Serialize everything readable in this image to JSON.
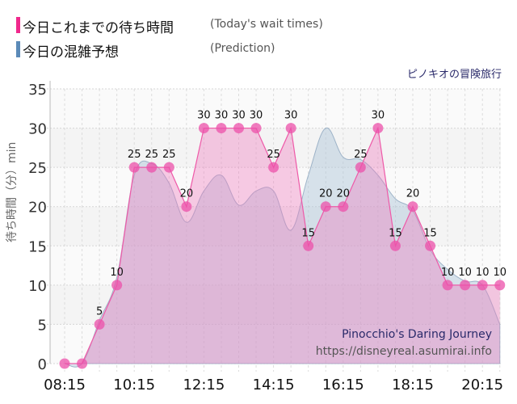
{
  "legend": {
    "today": {
      "label_jp": "今日これまでの待ち時間",
      "label_en": "(Today's wait times)",
      "color": "#f0288c"
    },
    "prediction": {
      "label_jp": "今日の混雑予想",
      "label_en": "(Prediction)",
      "color": "#5b8ab8"
    }
  },
  "subtitle": "ピノキオの冒険旅行",
  "watermark": {
    "name": "Pinocchio's Daring Journey",
    "url": "https://disneyreal.asumirai.info"
  },
  "y_axis_label": "待ち時間（分）min",
  "chart_data": {
    "type": "area",
    "title": "ピノキオの冒険旅行",
    "xlabel": "",
    "ylabel": "待ち時間（分）min",
    "ylim": [
      0,
      35
    ],
    "yticks": [
      0,
      5,
      10,
      15,
      20,
      25,
      30,
      35
    ],
    "xtick_labels": [
      "08:15",
      "10:15",
      "12:15",
      "14:15",
      "16:15",
      "18:15",
      "20:15"
    ],
    "grid": true,
    "legend_position": "top-left",
    "x": [
      "08:15",
      "08:45",
      "09:15",
      "09:45",
      "10:15",
      "10:45",
      "11:15",
      "11:45",
      "12:15",
      "12:45",
      "13:15",
      "13:45",
      "14:15",
      "14:45",
      "15:15",
      "15:45",
      "16:15",
      "16:45",
      "17:15",
      "17:45",
      "18:15",
      "18:45",
      "19:15",
      "19:45",
      "20:15",
      "20:45"
    ],
    "series": [
      {
        "name": "今日これまでの待ち時間 (Today's wait times)",
        "color": "#f0288c",
        "values": [
          0,
          0,
          5,
          10,
          25,
          25,
          25,
          20,
          30,
          30,
          30,
          30,
          25,
          30,
          15,
          20,
          20,
          25,
          30,
          15,
          20,
          15,
          10,
          10,
          10,
          10
        ]
      },
      {
        "name": "今日の混雑予想 (Prediction)",
        "color": "#5b8ab8",
        "values": [
          0,
          0,
          5.5,
          11,
          24,
          25.5,
          23,
          18,
          22,
          24,
          20.2,
          22,
          22,
          17,
          24,
          30,
          26.3,
          26,
          24,
          21,
          19.5,
          14.5,
          12,
          10.5,
          10,
          5
        ]
      }
    ]
  }
}
